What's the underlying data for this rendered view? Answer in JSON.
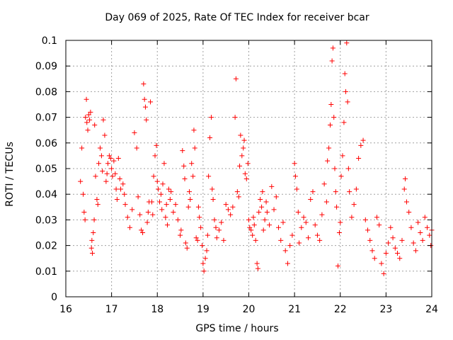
{
  "chart_data": {
    "type": "scatter",
    "title": "Day 069 of 2025, Rate Of TEC Index for receiver bcar",
    "xlabel": "GPS time / hours",
    "ylabel": "ROTI / TECUs",
    "xlim": [
      16,
      24
    ],
    "ylim": [
      0,
      0.1
    ],
    "xticks": [
      "16",
      "17",
      "18",
      "19",
      "20",
      "21",
      "22",
      "23",
      "24"
    ],
    "yticks": [
      "0",
      "0.01",
      "0.02",
      "0.03",
      "0.04",
      "0.05",
      "0.06",
      "0.07",
      "0.08",
      "0.09",
      "0.1"
    ],
    "grid": true,
    "marker": "+",
    "color": "#ff0000",
    "series": [
      {
        "name": "ROTI",
        "points": [
          [
            16.32,
            0.045
          ],
          [
            16.35,
            0.058
          ],
          [
            16.38,
            0.04
          ],
          [
            16.4,
            0.033
          ],
          [
            16.42,
            0.03
          ],
          [
            16.43,
            0.07
          ],
          [
            16.45,
            0.077
          ],
          [
            16.46,
            0.068
          ],
          [
            16.48,
            0.065
          ],
          [
            16.5,
            0.071
          ],
          [
            16.52,
            0.069
          ],
          [
            16.54,
            0.072
          ],
          [
            16.56,
            0.019
          ],
          [
            16.57,
            0.022
          ],
          [
            16.58,
            0.017
          ],
          [
            16.6,
            0.025
          ],
          [
            16.62,
            0.03
          ],
          [
            16.63,
            0.067
          ],
          [
            16.65,
            0.047
          ],
          [
            16.68,
            0.038
          ],
          [
            16.7,
            0.036
          ],
          [
            16.72,
            0.052
          ],
          [
            16.75,
            0.058
          ],
          [
            16.78,
            0.055
          ],
          [
            16.8,
            0.049
          ],
          [
            16.82,
            0.069
          ],
          [
            16.85,
            0.063
          ],
          [
            16.88,
            0.045
          ],
          [
            16.9,
            0.048
          ],
          [
            16.92,
            0.052
          ],
          [
            16.95,
            0.055
          ],
          [
            16.98,
            0.054
          ],
          [
            17.0,
            0.05
          ],
          [
            17.02,
            0.047
          ],
          [
            17.05,
            0.053
          ],
          [
            17.08,
            0.048
          ],
          [
            17.1,
            0.042
          ],
          [
            17.12,
            0.038
          ],
          [
            17.15,
            0.054
          ],
          [
            17.18,
            0.046
          ],
          [
            17.2,
            0.042
          ],
          [
            17.25,
            0.044
          ],
          [
            17.28,
            0.04
          ],
          [
            17.3,
            0.036
          ],
          [
            17.35,
            0.031
          ],
          [
            17.4,
            0.027
          ],
          [
            17.45,
            0.034
          ],
          [
            17.5,
            0.064
          ],
          [
            17.55,
            0.058
          ],
          [
            17.58,
            0.039
          ],
          [
            17.62,
            0.032
          ],
          [
            17.65,
            0.026
          ],
          [
            17.68,
            0.025
          ],
          [
            17.7,
            0.083
          ],
          [
            17.72,
            0.077
          ],
          [
            17.74,
            0.074
          ],
          [
            17.76,
            0.069
          ],
          [
            17.78,
            0.029
          ],
          [
            17.8,
            0.033
          ],
          [
            17.82,
            0.037
          ],
          [
            17.85,
            0.076
          ],
          [
            17.88,
            0.037
          ],
          [
            17.9,
            0.032
          ],
          [
            17.92,
            0.047
          ],
          [
            17.95,
            0.055
          ],
          [
            17.98,
            0.059
          ],
          [
            18.0,
            0.045
          ],
          [
            18.02,
            0.042
          ],
          [
            18.05,
            0.037
          ],
          [
            18.08,
            0.04
          ],
          [
            18.1,
            0.034
          ],
          [
            18.12,
            0.044
          ],
          [
            18.15,
            0.052
          ],
          [
            18.18,
            0.031
          ],
          [
            18.2,
            0.036
          ],
          [
            18.22,
            0.028
          ],
          [
            18.25,
            0.042
          ],
          [
            18.28,
            0.038
          ],
          [
            18.3,
            0.041
          ],
          [
            18.35,
            0.033
          ],
          [
            18.4,
            0.036
          ],
          [
            18.45,
            0.03
          ],
          [
            18.5,
            0.024
          ],
          [
            18.52,
            0.026
          ],
          [
            18.55,
            0.057
          ],
          [
            18.58,
            0.051
          ],
          [
            18.6,
            0.046
          ],
          [
            18.62,
            0.021
          ],
          [
            18.65,
            0.019
          ],
          [
            18.68,
            0.035
          ],
          [
            18.7,
            0.041
          ],
          [
            18.72,
            0.038
          ],
          [
            18.75,
            0.052
          ],
          [
            18.78,
            0.047
          ],
          [
            18.8,
            0.065
          ],
          [
            18.82,
            0.058
          ],
          [
            18.85,
            0.023
          ],
          [
            18.88,
            0.022
          ],
          [
            18.9,
            0.035
          ],
          [
            18.92,
            0.031
          ],
          [
            18.95,
            0.027
          ],
          [
            18.98,
            0.02
          ],
          [
            19.0,
            0.013
          ],
          [
            19.02,
            0.01
          ],
          [
            19.05,
            0.015
          ],
          [
            19.08,
            0.018
          ],
          [
            19.1,
            0.024
          ],
          [
            19.12,
            0.047
          ],
          [
            19.15,
            0.062
          ],
          [
            19.18,
            0.07
          ],
          [
            19.2,
            0.042
          ],
          [
            19.22,
            0.038
          ],
          [
            19.25,
            0.03
          ],
          [
            19.28,
            0.027
          ],
          [
            19.3,
            0.023
          ],
          [
            19.35,
            0.026
          ],
          [
            19.4,
            0.029
          ],
          [
            19.45,
            0.022
          ],
          [
            19.5,
            0.036
          ],
          [
            19.55,
            0.034
          ],
          [
            19.6,
            0.032
          ],
          [
            19.65,
            0.035
          ],
          [
            19.7,
            0.07
          ],
          [
            19.72,
            0.085
          ],
          [
            19.75,
            0.041
          ],
          [
            19.78,
            0.039
          ],
          [
            19.8,
            0.051
          ],
          [
            19.82,
            0.063
          ],
          [
            19.85,
            0.055
          ],
          [
            19.88,
            0.058
          ],
          [
            19.9,
            0.061
          ],
          [
            19.92,
            0.048
          ],
          [
            19.95,
            0.046
          ],
          [
            19.98,
            0.052
          ],
          [
            20.0,
            0.03
          ],
          [
            20.02,
            0.027
          ],
          [
            20.05,
            0.026
          ],
          [
            20.08,
            0.024
          ],
          [
            20.1,
            0.031
          ],
          [
            20.12,
            0.028
          ],
          [
            20.15,
            0.022
          ],
          [
            20.18,
            0.013
          ],
          [
            20.2,
            0.011
          ],
          [
            20.22,
            0.033
          ],
          [
            20.25,
            0.038
          ],
          [
            20.28,
            0.035
          ],
          [
            20.3,
            0.041
          ],
          [
            20.32,
            0.026
          ],
          [
            20.35,
            0.03
          ],
          [
            20.38,
            0.037
          ],
          [
            20.4,
            0.033
          ],
          [
            20.45,
            0.028
          ],
          [
            20.5,
            0.043
          ],
          [
            20.55,
            0.034
          ],
          [
            20.6,
            0.039
          ],
          [
            20.65,
            0.027
          ],
          [
            20.7,
            0.022
          ],
          [
            20.75,
            0.029
          ],
          [
            20.8,
            0.018
          ],
          [
            20.85,
            0.013
          ],
          [
            20.9,
            0.02
          ],
          [
            20.95,
            0.024
          ],
          [
            21.0,
            0.052
          ],
          [
            21.02,
            0.047
          ],
          [
            21.05,
            0.042
          ],
          [
            21.08,
            0.033
          ],
          [
            21.1,
            0.021
          ],
          [
            21.15,
            0.027
          ],
          [
            21.2,
            0.031
          ],
          [
            21.25,
            0.029
          ],
          [
            21.3,
            0.023
          ],
          [
            21.35,
            0.038
          ],
          [
            21.4,
            0.041
          ],
          [
            21.45,
            0.028
          ],
          [
            21.5,
            0.024
          ],
          [
            21.55,
            0.022
          ],
          [
            21.6,
            0.032
          ],
          [
            21.65,
            0.044
          ],
          [
            21.7,
            0.037
          ],
          [
            21.72,
            0.053
          ],
          [
            21.75,
            0.058
          ],
          [
            21.78,
            0.067
          ],
          [
            21.8,
            0.075
          ],
          [
            21.82,
            0.092
          ],
          [
            21.84,
            0.097
          ],
          [
            21.86,
            0.07
          ],
          [
            21.88,
            0.05
          ],
          [
            21.9,
            0.041
          ],
          [
            21.92,
            0.035
          ],
          [
            21.95,
            0.012
          ],
          [
            21.98,
            0.025
          ],
          [
            22.0,
            0.029
          ],
          [
            22.02,
            0.047
          ],
          [
            22.05,
            0.055
          ],
          [
            22.08,
            0.068
          ],
          [
            22.1,
            0.087
          ],
          [
            22.12,
            0.08
          ],
          [
            22.14,
            0.099
          ],
          [
            22.16,
            0.076
          ],
          [
            22.18,
            0.05
          ],
          [
            22.2,
            0.041
          ],
          [
            22.25,
            0.031
          ],
          [
            22.3,
            0.036
          ],
          [
            22.35,
            0.042
          ],
          [
            22.4,
            0.054
          ],
          [
            22.45,
            0.059
          ],
          [
            22.5,
            0.061
          ],
          [
            22.55,
            0.03
          ],
          [
            22.6,
            0.026
          ],
          [
            22.65,
            0.022
          ],
          [
            22.7,
            0.018
          ],
          [
            22.75,
            0.015
          ],
          [
            22.8,
            0.031
          ],
          [
            22.85,
            0.028
          ],
          [
            22.9,
            0.013
          ],
          [
            22.95,
            0.009
          ],
          [
            23.0,
            0.017
          ],
          [
            23.05,
            0.021
          ],
          [
            23.1,
            0.027
          ],
          [
            23.15,
            0.023
          ],
          [
            23.2,
            0.019
          ],
          [
            23.25,
            0.017
          ],
          [
            23.3,
            0.015
          ],
          [
            23.35,
            0.022
          ],
          [
            23.4,
            0.042
          ],
          [
            23.42,
            0.046
          ],
          [
            23.45,
            0.037
          ],
          [
            23.5,
            0.033
          ],
          [
            23.55,
            0.027
          ],
          [
            23.6,
            0.021
          ],
          [
            23.65,
            0.018
          ],
          [
            23.7,
            0.029
          ],
          [
            23.75,
            0.025
          ],
          [
            23.8,
            0.022
          ],
          [
            23.85,
            0.031
          ],
          [
            23.9,
            0.027
          ],
          [
            23.95,
            0.024
          ],
          [
            23.98,
            0.02
          ],
          [
            24.0,
            0.026
          ]
        ]
      }
    ]
  }
}
